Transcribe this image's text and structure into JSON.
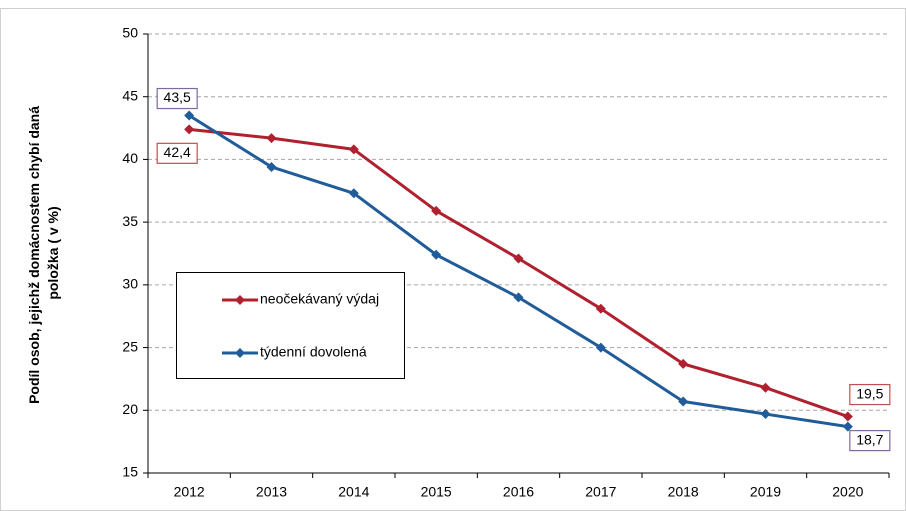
{
  "chart_data": {
    "type": "line",
    "ylabel": [
      "Podíl osob, jejichž domácnostem chybí daná",
      "položka  ( v %)"
    ],
    "categories": [
      "2012",
      "2013",
      "2014",
      "2015",
      "2016",
      "2017",
      "2018",
      "2019",
      "2020"
    ],
    "series": [
      {
        "name": "neočekávaný výdaj",
        "color": "#b0202e",
        "values": [
          42.4,
          41.7,
          40.8,
          35.9,
          32.1,
          28.1,
          23.7,
          21.8,
          19.5
        ],
        "value_labels": [
          "42,4",
          null,
          null,
          null,
          null,
          null,
          null,
          null,
          "19,5"
        ]
      },
      {
        "name": "týdenní dovolená",
        "color": "#1f5c99",
        "values": [
          43.5,
          39.4,
          37.3,
          32.4,
          29.0,
          25.0,
          20.7,
          19.7,
          18.7
        ],
        "value_labels": [
          "43,5",
          null,
          null,
          null,
          null,
          null,
          null,
          null,
          "18,7"
        ]
      }
    ],
    "ylim": [
      15,
      50
    ],
    "yticks": [
      15,
      20,
      25,
      30,
      35,
      40,
      45,
      50
    ],
    "grid": true
  }
}
